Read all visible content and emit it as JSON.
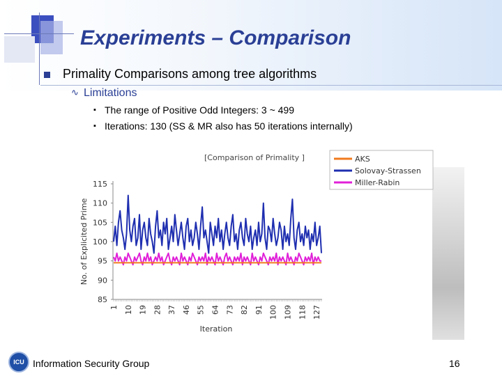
{
  "slide": {
    "title": "Experiments – Comparison",
    "bullet_1": "Primality Comparisons among tree algorithms",
    "bullet_2": "Limitations",
    "bullet_3a": "The range of Positive Odd Integers: 3 ~ 499",
    "bullet_3b": "Iterations: 130 (SS & MR also has 50 iterations internally)",
    "footer": "Information Security Group",
    "page_number": "16",
    "logo_text": "ICU"
  },
  "chart_data": {
    "type": "line",
    "title": "[Comparison of Primality ]",
    "xlabel": "Iteration",
    "ylabel": "No. of Explicited Prime",
    "ylim": [
      85,
      115
    ],
    "yticks": [
      85,
      90,
      95,
      100,
      105,
      110,
      115
    ],
    "xtick_labels": [
      "1",
      "10",
      "19",
      "28",
      "37",
      "46",
      "55",
      "64",
      "73",
      "82",
      "91",
      "100",
      "109",
      "118",
      "127"
    ],
    "legend_position": "top-right",
    "series": [
      {
        "name": "AKS",
        "color": "#f07a1e",
        "values": [
          94.5,
          94.5,
          94.5,
          94.5,
          94.5,
          94.5,
          94.5,
          94.5,
          94.5,
          94.5,
          94.5,
          94.5,
          94.5,
          94.5,
          94.5,
          94.5,
          94.5,
          94.5,
          94.5,
          94.5,
          94.5,
          94.5,
          94.5,
          94.5,
          94.5,
          94.5,
          94.5,
          94.5,
          94.5,
          94.5,
          94.5,
          94.5,
          94.5,
          94.5,
          94.5,
          94.5,
          94.5,
          94.5,
          94.5,
          94.5,
          94.5,
          94.5,
          94.5,
          94.5,
          94.5,
          94.5,
          94.5,
          94.5,
          94.5,
          94.5,
          94.5,
          94.5,
          94.5,
          94.5,
          94.5,
          94.5,
          94.5,
          94.5,
          94.5,
          94.5,
          94.5,
          94.5,
          94.5,
          94.5,
          94.5,
          94.5,
          94.5,
          94.5,
          94.5,
          94.5,
          94.5,
          94.5,
          94.5,
          94.5,
          94.5,
          94.5,
          94.5,
          94.5,
          94.5,
          94.5,
          94.5,
          94.5,
          94.5,
          94.5,
          94.5,
          94.5,
          94.5,
          94.5,
          94.5,
          94.5,
          94.5,
          94.5,
          94.5,
          94.5,
          94.5,
          94.5,
          94.5,
          94.5,
          94.5,
          94.5,
          94.5,
          94.5,
          94.5,
          94.5,
          94.5,
          94.5,
          94.5,
          94.5,
          94.5,
          94.5,
          94.5,
          94.5,
          94.5,
          94.5,
          94.5,
          94.5,
          94.5,
          94.5,
          94.5,
          94.5,
          94.5,
          94.5,
          94.5,
          94.5,
          94.5,
          94.5,
          94.5,
          94.5,
          94.5,
          94.5
        ]
      },
      {
        "name": "Solovay-Strassen",
        "color": "#1f2fb0",
        "values": [
          100,
          104,
          99,
          105,
          108,
          103,
          101,
          98,
          102,
          112,
          103,
          100,
          104,
          106,
          99,
          101,
          107,
          98,
          103,
          105,
          101,
          99,
          106,
          102,
          100,
          97,
          104,
          108,
          101,
          103,
          99,
          105,
          102,
          106,
          98,
          101,
          104,
          100,
          107,
          103,
          99,
          102,
          105,
          101,
          98,
          104,
          106,
          100,
          103,
          99,
          101,
          105,
          102,
          98,
          104,
          109,
          101,
          103,
          100,
          97,
          105,
          102,
          99,
          104,
          101,
          106,
          100,
          103,
          98,
          102,
          105,
          101,
          99,
          104,
          107,
          100,
          102,
          98,
          103,
          105,
          101,
          99,
          106,
          102,
          100,
          104,
          98,
          101,
          103,
          99,
          105,
          100,
          102,
          110,
          101,
          98,
          104,
          103,
          100,
          106,
          102,
          99,
          101,
          105,
          103,
          98,
          104,
          100,
          102,
          99,
          106,
          111,
          101,
          98,
          103,
          105,
          100,
          102,
          99,
          104,
          101,
          103,
          98,
          102,
          100,
          105,
          99,
          101,
          104,
          97
        ]
      },
      {
        "name": "Miller-Rabin",
        "color": "#e020d8",
        "values": [
          96,
          95,
          97,
          95,
          96,
          95,
          94,
          96,
          95,
          97,
          96,
          95,
          94,
          96,
          95,
          96,
          97,
          95,
          94,
          96,
          95,
          97,
          95,
          96,
          94,
          95,
          96,
          95,
          97,
          95,
          96,
          94,
          95,
          96,
          97,
          95,
          94,
          96,
          95,
          96,
          95,
          94,
          97,
          95,
          96,
          95,
          94,
          96,
          95,
          97,
          96,
          95,
          94,
          96,
          95,
          96,
          95,
          97,
          94,
          96,
          95,
          96,
          95,
          94,
          97,
          95,
          96,
          95,
          94,
          96,
          97,
          95,
          96,
          95,
          94,
          96,
          95,
          96,
          95,
          97,
          94,
          96,
          95,
          96,
          95,
          94,
          97,
          95,
          96,
          95,
          94,
          96,
          95,
          97,
          96,
          95,
          94,
          96,
          95,
          96,
          95,
          97,
          94,
          96,
          95,
          96,
          95,
          94,
          97,
          95,
          96,
          95,
          94,
          96,
          95,
          97,
          96,
          95,
          94,
          96,
          95,
          96,
          95,
          97,
          94,
          96,
          95,
          96,
          95,
          95
        ]
      }
    ]
  }
}
